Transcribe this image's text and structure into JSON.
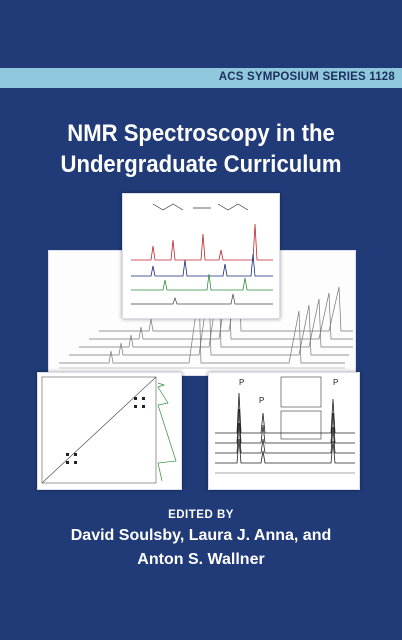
{
  "series": {
    "label": "ACS SYMPOSIUM SERIES 1128"
  },
  "title": {
    "line1": "NMR Spectroscopy in the",
    "line2": "Undergraduate Curriculum"
  },
  "editors": {
    "edited_by": "EDITED BY",
    "line1": "David Soulsby, Laura J. Anna, and",
    "line2": "Anton S. Wallner"
  },
  "colors": {
    "background": "#203b78",
    "band": "#8fc8dc",
    "text": "#ffffff"
  }
}
